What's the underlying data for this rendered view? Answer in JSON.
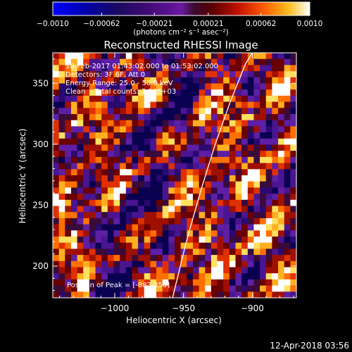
{
  "chart_data": {
    "type": "heatmap",
    "title": "Reconstructed RHESSI Image",
    "xlabel": "Heliocentric X (arcsec)",
    "ylabel": "Heliocentric Y (arcsec)",
    "xlim": [
      -1045,
      -868
    ],
    "ylim": [
      174,
      375
    ],
    "xticks": [
      {
        "value": -1000,
        "label": "−1000"
      },
      {
        "value": -950,
        "label": "−950"
      },
      {
        "value": -900,
        "label": "−900"
      }
    ],
    "yticks": [
      {
        "value": 200,
        "label": "200"
      },
      {
        "value": 250,
        "label": "250"
      },
      {
        "value": 300,
        "label": "300"
      },
      {
        "value": 350,
        "label": "350"
      }
    ],
    "colorbar": {
      "range": [
        -0.001,
        0.001
      ],
      "ticks": [
        {
          "value": -0.001,
          "label": "−0.0010"
        },
        {
          "value": -0.00062,
          "label": "−0.00062"
        },
        {
          "value": -0.00021,
          "label": "−0.00021"
        },
        {
          "value": 0.00021,
          "label": "0.00021"
        },
        {
          "value": 0.00062,
          "label": "0.00062"
        },
        {
          "value": 0.001,
          "label": "0.0010"
        }
      ],
      "units_label": "(photons cm⁻² s⁻¹ asec⁻²)"
    },
    "info_lines": [
      "18-Feb-2017 01:43:02.000 to 01:53:02.000",
      "Detectors: 3F 6F, Att 0",
      "Energy Range: 25.0 - 50.0 keV",
      "Clean    Total counts: 7.14E+03"
    ],
    "peak_text": "Position of Peak = [-882,350]",
    "limb_curve": [
      {
        "x": -958,
        "y": 174
      },
      {
        "x": -948,
        "y": 220
      },
      {
        "x": -938,
        "y": 260
      },
      {
        "x": -927,
        "y": 300
      },
      {
        "x": -916,
        "y": 335
      },
      {
        "x": -905,
        "y": 366
      },
      {
        "x": -900,
        "y": 375
      }
    ],
    "grid": false
  },
  "footer": {
    "timestamp": "12-Apr-2018 03:56"
  }
}
